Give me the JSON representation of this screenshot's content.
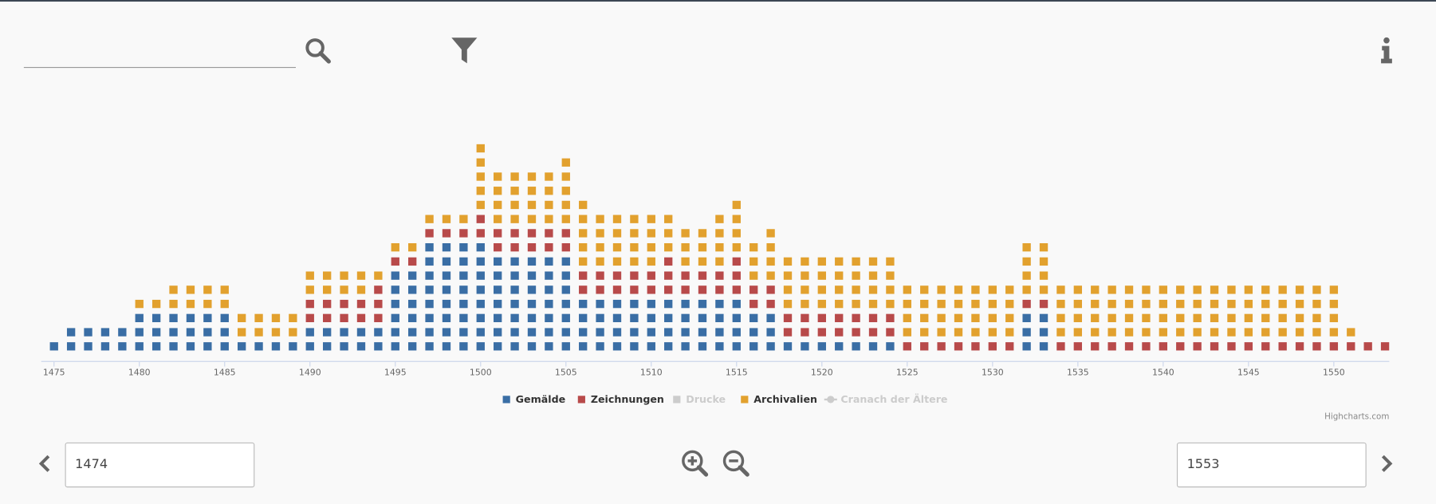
{
  "chart_data": {
    "type": "dot-stack",
    "x": [
      1475,
      1476,
      1477,
      1478,
      1479,
      1480,
      1481,
      1482,
      1483,
      1484,
      1485,
      1486,
      1487,
      1488,
      1489,
      1490,
      1491,
      1492,
      1493,
      1494,
      1495,
      1496,
      1497,
      1498,
      1499,
      1500,
      1501,
      1502,
      1503,
      1504,
      1505,
      1506,
      1507,
      1508,
      1509,
      1510,
      1511,
      1512,
      1513,
      1514,
      1515,
      1516,
      1517,
      1518,
      1519,
      1520,
      1521,
      1522,
      1523,
      1524,
      1525,
      1526,
      1527,
      1528,
      1529,
      1530,
      1531,
      1532,
      1533,
      1534,
      1535,
      1536,
      1537,
      1538,
      1539,
      1540,
      1541,
      1542,
      1543,
      1544,
      1545,
      1546,
      1547,
      1548,
      1549,
      1550,
      1551,
      1552,
      1553
    ],
    "series": [
      {
        "name": "Gemälde",
        "color": "#3a6ea5",
        "values": [
          1,
          2,
          2,
          2,
          2,
          3,
          3,
          3,
          3,
          3,
          3,
          1,
          1,
          1,
          1,
          2,
          2,
          2,
          2,
          2,
          6,
          6,
          8,
          8,
          8,
          8,
          7,
          7,
          7,
          7,
          7,
          4,
          4,
          4,
          4,
          4,
          4,
          4,
          4,
          4,
          4,
          3,
          3,
          1,
          1,
          1,
          1,
          1,
          1,
          1,
          0,
          0,
          0,
          0,
          0,
          0,
          0,
          3,
          3,
          0,
          0,
          0,
          0,
          0,
          0,
          0,
          0,
          0,
          0,
          0,
          0,
          0,
          0,
          0,
          0,
          0,
          0,
          0,
          0
        ]
      },
      {
        "name": "Zeichnungen",
        "color": "#b84a4a",
        "values": [
          0,
          0,
          0,
          0,
          0,
          0,
          0,
          0,
          0,
          0,
          0,
          0,
          0,
          0,
          0,
          2,
          2,
          2,
          2,
          3,
          1,
          1,
          1,
          1,
          1,
          2,
          2,
          2,
          2,
          2,
          2,
          2,
          2,
          2,
          2,
          2,
          3,
          2,
          2,
          2,
          3,
          2,
          2,
          2,
          2,
          2,
          2,
          2,
          2,
          2,
          1,
          1,
          1,
          1,
          1,
          1,
          1,
          1,
          1,
          1,
          1,
          1,
          1,
          1,
          1,
          1,
          1,
          1,
          1,
          1,
          1,
          1,
          1,
          1,
          1,
          1,
          1,
          1,
          1
        ]
      },
      {
        "name": "Archivalien",
        "color": "#e2a12e",
        "values": [
          0,
          0,
          0,
          0,
          0,
          1,
          1,
          2,
          2,
          2,
          2,
          2,
          2,
          2,
          2,
          2,
          2,
          2,
          2,
          1,
          1,
          1,
          1,
          1,
          1,
          5,
          4,
          4,
          4,
          4,
          5,
          5,
          4,
          4,
          4,
          4,
          3,
          3,
          3,
          4,
          4,
          3,
          4,
          4,
          4,
          4,
          4,
          4,
          4,
          4,
          4,
          4,
          4,
          4,
          4,
          4,
          4,
          4,
          4,
          4,
          4,
          4,
          4,
          4,
          4,
          4,
          4,
          4,
          4,
          4,
          4,
          4,
          4,
          4,
          4,
          4,
          1,
          0,
          0
        ]
      }
    ],
    "hidden_series": [
      {
        "name": "Drucke"
      },
      {
        "name": "Cranach der Ältere"
      }
    ],
    "xlim": [
      1474.25,
      1553.25
    ],
    "xticks": [
      1475,
      1480,
      1485,
      1490,
      1495,
      1500,
      1505,
      1510,
      1515,
      1520,
      1525,
      1530,
      1535,
      1540,
      1545,
      1550
    ],
    "credit": "Highcharts.com"
  },
  "controls": {
    "range_start": "1474",
    "range_end": "1553"
  }
}
